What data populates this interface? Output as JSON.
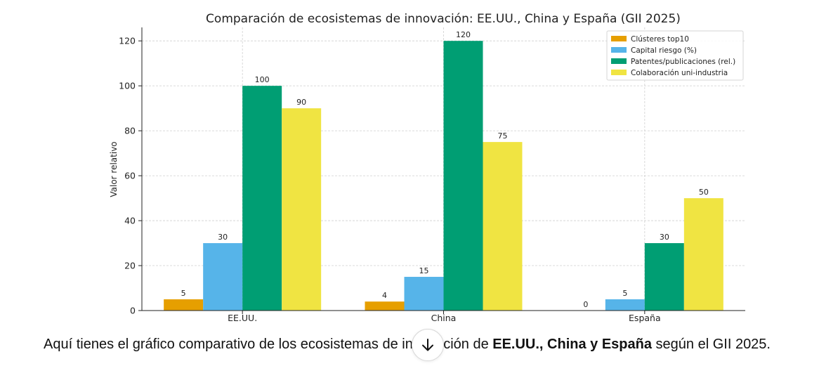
{
  "chart_data": {
    "type": "bar",
    "title": "Comparación de ecosistemas de innovación: EE.UU., China y España (GII 2025)",
    "xlabel": "",
    "ylabel": "Valor relativo",
    "categories": [
      "EE.UU.",
      "China",
      "España"
    ],
    "ylim": [
      0,
      126
    ],
    "yticks": [
      0,
      20,
      40,
      60,
      80,
      100,
      120
    ],
    "grid": true,
    "legend_position": "top-right",
    "series": [
      {
        "name": "Clústeres top10",
        "values": [
          5,
          4,
          0
        ],
        "color": "#E69F00"
      },
      {
        "name": "Capital riesgo (%)",
        "values": [
          30,
          15,
          5
        ],
        "color": "#56B4E9"
      },
      {
        "name": "Patentes/publicaciones (rel.)",
        "values": [
          100,
          120,
          30
        ],
        "color": "#009E73"
      },
      {
        "name": "Colaboración uni-industria",
        "values": [
          90,
          75,
          50
        ],
        "color": "#F0E442"
      }
    ]
  },
  "message": {
    "part1": "Aquí tienes el gráfico comparativo de los ecosistemas de innovación de ",
    "bold": "EE.UU., China y España",
    "part2": " según el GII 2025."
  },
  "scroll_button": {
    "icon": "arrow-down-icon"
  }
}
